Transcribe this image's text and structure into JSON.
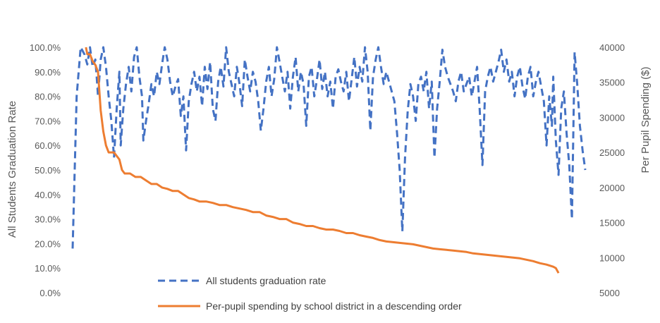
{
  "chart_data": {
    "type": "line",
    "title": "",
    "legend_position": "bottom-center",
    "grid": false,
    "y_left": {
      "label": "All Students Graduation Rate",
      "range": [
        0,
        100
      ],
      "ticks": [
        "0.0%",
        "10.0%",
        "20.0%",
        "30.0%",
        "40.0%",
        "50.0%",
        "60.0%",
        "70.0%",
        "80.0%",
        "90.0%",
        "100.0%"
      ]
    },
    "y_right": {
      "label": "Per Pupil Spending ($)",
      "range": [
        5000,
        40000
      ],
      "ticks": [
        "5000",
        "10000",
        "15000",
        "20000",
        "25000",
        "30000",
        "35000",
        "40000"
      ]
    },
    "x": {
      "label": "",
      "count": 360
    },
    "series": [
      {
        "name": "All students graduation rate",
        "axis": "left",
        "style": "dashed",
        "color": "#4472C4",
        "points": [
          [
            0,
            18
          ],
          [
            3,
            80
          ],
          [
            6,
            100
          ],
          [
            9,
            97
          ],
          [
            11,
            93
          ],
          [
            13,
            100
          ],
          [
            15,
            92
          ],
          [
            17,
            95
          ],
          [
            18,
            88
          ],
          [
            19,
            80
          ],
          [
            21,
            95
          ],
          [
            23,
            100
          ],
          [
            25,
            92
          ],
          [
            27,
            80
          ],
          [
            29,
            70
          ],
          [
            31,
            55
          ],
          [
            33,
            75
          ],
          [
            35,
            90
          ],
          [
            36,
            60
          ],
          [
            38,
            75
          ],
          [
            40,
            85
          ],
          [
            42,
            92
          ],
          [
            44,
            82
          ],
          [
            46,
            96
          ],
          [
            48,
            100
          ],
          [
            50,
            88
          ],
          [
            52,
            80
          ],
          [
            53,
            62
          ],
          [
            55,
            70
          ],
          [
            57,
            77
          ],
          [
            59,
            85
          ],
          [
            61,
            80
          ],
          [
            63,
            90
          ],
          [
            65,
            85
          ],
          [
            67,
            93
          ],
          [
            69,
            100
          ],
          [
            71,
            95
          ],
          [
            73,
            86
          ],
          [
            75,
            80
          ],
          [
            77,
            84
          ],
          [
            79,
            87
          ],
          [
            81,
            72
          ],
          [
            83,
            80
          ],
          [
            85,
            58
          ],
          [
            87,
            78
          ],
          [
            89,
            85
          ],
          [
            91,
            90
          ],
          [
            93,
            82
          ],
          [
            95,
            88
          ],
          [
            97,
            76
          ],
          [
            99,
            92
          ],
          [
            101,
            83
          ],
          [
            103,
            94
          ],
          [
            105,
            75
          ],
          [
            107,
            70
          ],
          [
            109,
            86
          ],
          [
            111,
            92
          ],
          [
            113,
            84
          ],
          [
            115,
            100
          ],
          [
            117,
            90
          ],
          [
            119,
            85
          ],
          [
            121,
            80
          ],
          [
            123,
            92
          ],
          [
            125,
            85
          ],
          [
            127,
            76
          ],
          [
            129,
            95
          ],
          [
            131,
            88
          ],
          [
            133,
            82
          ],
          [
            135,
            90
          ],
          [
            137,
            86
          ],
          [
            139,
            78
          ],
          [
            141,
            66
          ],
          [
            143,
            75
          ],
          [
            145,
            86
          ],
          [
            147,
            92
          ],
          [
            149,
            80
          ],
          [
            151,
            87
          ],
          [
            153,
            100
          ],
          [
            155,
            94
          ],
          [
            157,
            88
          ],
          [
            159,
            82
          ],
          [
            161,
            90
          ],
          [
            163,
            75
          ],
          [
            165,
            88
          ],
          [
            167,
            96
          ],
          [
            169,
            82
          ],
          [
            171,
            90
          ],
          [
            173,
            85
          ],
          [
            175,
            68
          ],
          [
            177,
            88
          ],
          [
            179,
            92
          ],
          [
            181,
            80
          ],
          [
            183,
            87
          ],
          [
            185,
            95
          ],
          [
            187,
            83
          ],
          [
            189,
            90
          ],
          [
            191,
            80
          ],
          [
            193,
            86
          ],
          [
            195,
            75
          ],
          [
            197,
            88
          ],
          [
            199,
            91
          ],
          [
            201,
            86
          ],
          [
            203,
            82
          ],
          [
            205,
            90
          ],
          [
            207,
            78
          ],
          [
            209,
            87
          ],
          [
            211,
            96
          ],
          [
            213,
            84
          ],
          [
            215,
            92
          ],
          [
            217,
            86
          ],
          [
            219,
            100
          ],
          [
            221,
            90
          ],
          [
            223,
            66
          ],
          [
            225,
            88
          ],
          [
            227,
            95
          ],
          [
            229,
            100
          ],
          [
            231,
            92
          ],
          [
            233,
            85
          ],
          [
            235,
            90
          ],
          [
            237,
            86
          ],
          [
            239,
            82
          ],
          [
            241,
            78
          ],
          [
            243,
            65
          ],
          [
            245,
            50
          ],
          [
            247,
            25
          ],
          [
            249,
            55
          ],
          [
            251,
            74
          ],
          [
            253,
            85
          ],
          [
            255,
            80
          ],
          [
            257,
            70
          ],
          [
            259,
            85
          ],
          [
            261,
            88
          ],
          [
            263,
            82
          ],
          [
            265,
            90
          ],
          [
            267,
            75
          ],
          [
            269,
            86
          ],
          [
            271,
            55
          ],
          [
            273,
            75
          ],
          [
            275,
            86
          ],
          [
            277,
            99
          ],
          [
            279,
            92
          ],
          [
            281,
            88
          ],
          [
            283,
            85
          ],
          [
            285,
            82
          ],
          [
            287,
            78
          ],
          [
            289,
            86
          ],
          [
            291,
            90
          ],
          [
            293,
            82
          ],
          [
            295,
            85
          ],
          [
            297,
            88
          ],
          [
            299,
            80
          ],
          [
            301,
            86
          ],
          [
            303,
            92
          ],
          [
            305,
            74
          ],
          [
            307,
            52
          ],
          [
            309,
            82
          ],
          [
            311,
            88
          ],
          [
            313,
            92
          ],
          [
            315,
            86
          ],
          [
            317,
            90
          ],
          [
            319,
            94
          ],
          [
            321,
            99
          ],
          [
            323,
            90
          ],
          [
            325,
            95
          ],
          [
            327,
            86
          ],
          [
            329,
            90
          ],
          [
            331,
            80
          ],
          [
            333,
            88
          ],
          [
            335,
            92
          ],
          [
            337,
            84
          ],
          [
            339,
            79
          ],
          [
            341,
            88
          ],
          [
            343,
            92
          ],
          [
            345,
            80
          ],
          [
            347,
            86
          ],
          [
            349,
            90
          ],
          [
            351,
            84
          ],
          [
            353,
            78
          ],
          [
            355,
            60
          ],
          [
            357,
            80
          ],
          [
            359,
            68
          ],
          [
            360,
            88
          ],
          [
            362,
            62
          ],
          [
            364,
            48
          ],
          [
            366,
            75
          ],
          [
            368,
            82
          ],
          [
            370,
            65
          ],
          [
            372,
            52
          ],
          [
            374,
            30
          ],
          [
            376,
            98
          ],
          [
            378,
            85
          ],
          [
            380,
            68
          ],
          [
            382,
            58
          ],
          [
            384,
            50
          ]
        ]
      },
      {
        "name": "Per-pupil spending by school district in a descending order",
        "axis": "right",
        "style": "solid",
        "color": "#ED7D31",
        "points": [
          [
            10,
            40000
          ],
          [
            11,
            39000
          ],
          [
            13,
            39000
          ],
          [
            15,
            38000
          ],
          [
            17,
            37500
          ],
          [
            19,
            36500
          ],
          [
            21,
            31000
          ],
          [
            23,
            28000
          ],
          [
            25,
            26000
          ],
          [
            27,
            25000
          ],
          [
            31,
            25000
          ],
          [
            35,
            24000
          ],
          [
            37,
            22500
          ],
          [
            39,
            22000
          ],
          [
            43,
            22000
          ],
          [
            47,
            21500
          ],
          [
            51,
            21500
          ],
          [
            55,
            21000
          ],
          [
            59,
            20500
          ],
          [
            63,
            20500
          ],
          [
            67,
            20000
          ],
          [
            71,
            19800
          ],
          [
            75,
            19500
          ],
          [
            79,
            19500
          ],
          [
            83,
            19000
          ],
          [
            87,
            18500
          ],
          [
            91,
            18300
          ],
          [
            95,
            18000
          ],
          [
            100,
            18000
          ],
          [
            105,
            17800
          ],
          [
            110,
            17500
          ],
          [
            115,
            17500
          ],
          [
            120,
            17200
          ],
          [
            125,
            17000
          ],
          [
            130,
            16800
          ],
          [
            135,
            16500
          ],
          [
            140,
            16500
          ],
          [
            145,
            16000
          ],
          [
            150,
            15800
          ],
          [
            155,
            15500
          ],
          [
            160,
            15500
          ],
          [
            165,
            15000
          ],
          [
            170,
            14800
          ],
          [
            175,
            14500
          ],
          [
            180,
            14500
          ],
          [
            185,
            14200
          ],
          [
            190,
            14000
          ],
          [
            195,
            14000
          ],
          [
            200,
            13800
          ],
          [
            205,
            13500
          ],
          [
            210,
            13500
          ],
          [
            215,
            13200
          ],
          [
            220,
            13000
          ],
          [
            225,
            12800
          ],
          [
            230,
            12500
          ],
          [
            235,
            12300
          ],
          [
            240,
            12200
          ],
          [
            245,
            12100
          ],
          [
            250,
            12000
          ],
          [
            255,
            11900
          ],
          [
            260,
            11700
          ],
          [
            265,
            11500
          ],
          [
            270,
            11300
          ],
          [
            275,
            11200
          ],
          [
            280,
            11100
          ],
          [
            285,
            11000
          ],
          [
            290,
            10900
          ],
          [
            295,
            10800
          ],
          [
            300,
            10600
          ],
          [
            305,
            10500
          ],
          [
            310,
            10400
          ],
          [
            315,
            10300
          ],
          [
            320,
            10200
          ],
          [
            325,
            10100
          ],
          [
            330,
            10000
          ],
          [
            335,
            9900
          ],
          [
            340,
            9700
          ],
          [
            345,
            9500
          ],
          [
            350,
            9200
          ],
          [
            355,
            9000
          ],
          [
            360,
            8700
          ],
          [
            362,
            8500
          ],
          [
            364,
            7800
          ]
        ]
      }
    ]
  }
}
